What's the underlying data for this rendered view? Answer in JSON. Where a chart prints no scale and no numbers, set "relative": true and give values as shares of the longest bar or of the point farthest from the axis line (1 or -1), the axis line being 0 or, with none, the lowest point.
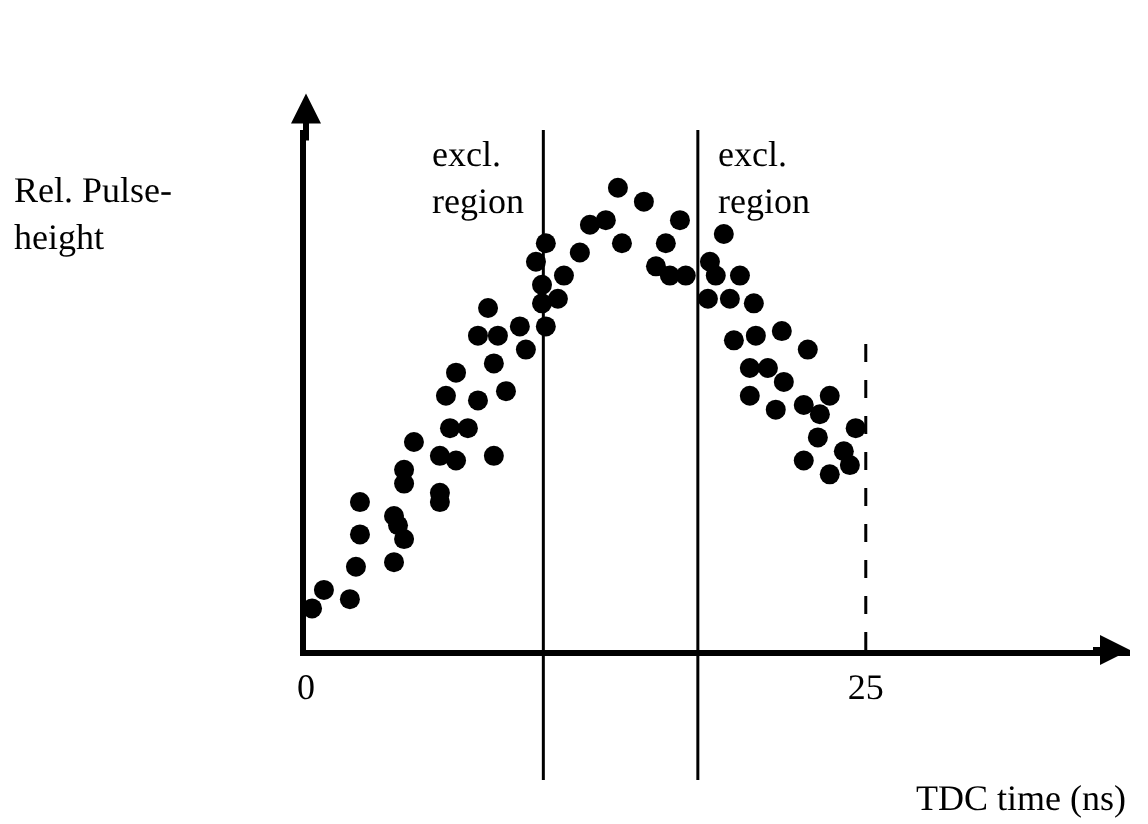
{
  "chart_data": {
    "type": "scatter",
    "relative": true,
    "xlabel": "TDC time (ns)",
    "ylabel": "Rel. Pulse-height",
    "x": [
      0.27,
      0.8,
      1.96,
      2.23,
      2.41,
      2.41,
      3.93,
      3.93,
      4.11,
      4.38,
      4.38,
      4.38,
      4.82,
      5.98,
      5.98,
      5.98,
      6.7,
      6.43,
      7.23,
      6.25,
      6.7,
      7.68,
      8.39,
      8.93,
      8.39,
      7.68,
      8.57,
      8.13,
      9.55,
      9.82,
      10.71,
      10.54,
      11.25,
      10.54,
      10.27,
      10.71,
      11.52,
      12.23,
      12.68,
      13.39,
      13.93,
      14.11,
      15.09,
      15.63,
      16.07,
      16.7,
      16.25,
      16.96,
      18.04,
      18.3,
      18.66,
      19.38,
      17.95,
      18.93,
      20.0,
      19.11,
      20.09,
      21.25,
      22.41,
      19.82,
      20.63,
      21.34,
      19.82,
      20.98,
      22.23,
      23.39,
      22.95,
      22.86,
      22.23,
      23.39,
      24.02,
      24.29,
      24.55
    ],
    "values": [
      0.09,
      0.13,
      0.11,
      0.18,
      0.25,
      0.32,
      0.19,
      0.29,
      0.27,
      0.24,
      0.36,
      0.39,
      0.45,
      0.32,
      0.34,
      0.42,
      0.41,
      0.48,
      0.48,
      0.55,
      0.6,
      0.54,
      0.42,
      0.56,
      0.62,
      0.68,
      0.68,
      0.74,
      0.7,
      0.65,
      0.7,
      0.75,
      0.76,
      0.79,
      0.84,
      0.88,
      0.81,
      0.86,
      0.92,
      0.93,
      1,
      0.88,
      0.97,
      0.83,
      0.88,
      0.93,
      0.81,
      0.81,
      0.84,
      0.81,
      0.9,
      0.81,
      0.76,
      0.76,
      0.75,
      0.67,
      0.68,
      0.69,
      0.65,
      0.61,
      0.61,
      0.58,
      0.55,
      0.52,
      0.53,
      0.55,
      0.51,
      0.46,
      0.41,
      0.38,
      0.43,
      0.4,
      0.48
    ],
    "color": "#000000",
    "marker": "circle",
    "xlim": [
      0,
      36.8
    ],
    "xticks": [
      0,
      25
    ],
    "legend": false,
    "ref_lines": [
      {
        "axis": "x",
        "value": 10.6,
        "label": "excl. region"
      },
      {
        "axis": "x",
        "value": 17.5,
        "label": "excl. region"
      },
      {
        "axis": "x",
        "value": 25,
        "line_style": "dashed"
      }
    ]
  }
}
